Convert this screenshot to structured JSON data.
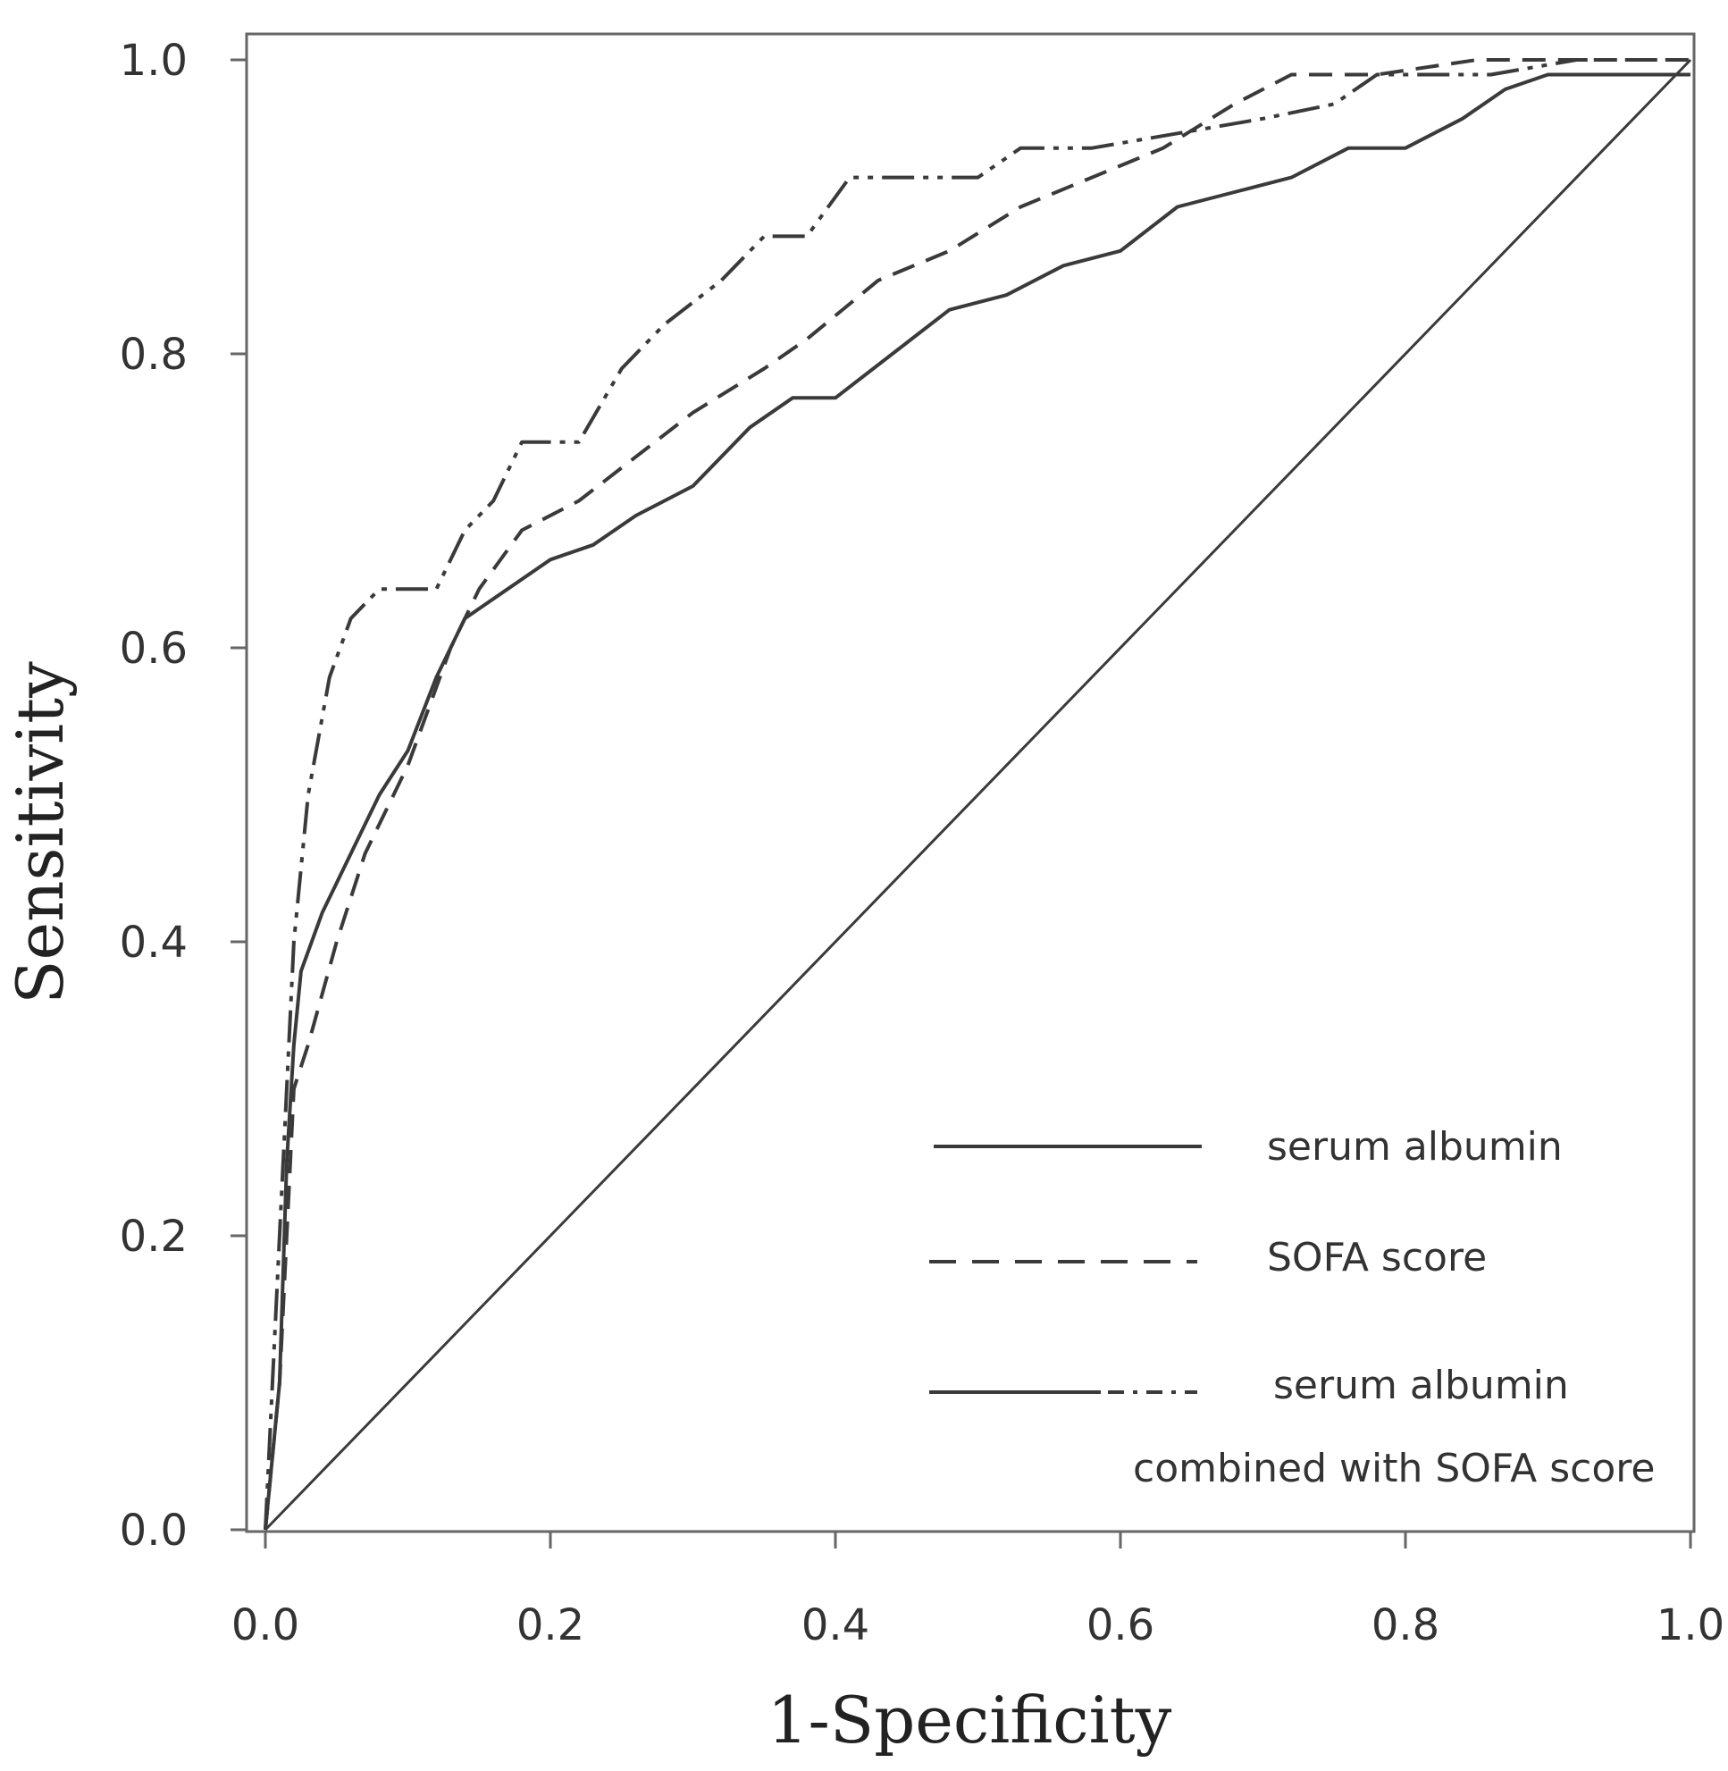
{
  "chart_data": {
    "type": "line",
    "title": "",
    "xlabel": "1-Specificity",
    "ylabel": "Sensitivity",
    "xlim": [
      0,
      1
    ],
    "ylim": [
      0,
      1
    ],
    "x_ticks": [
      "0.0",
      "0.2",
      "0.4",
      "0.6",
      "0.8",
      "1.0"
    ],
    "y_ticks": [
      "0.0",
      "0.2",
      "0.4",
      "0.6",
      "0.8",
      "1.0"
    ],
    "grid": false,
    "legend_position": "bottom-right",
    "series": [
      {
        "name": "serum albumin",
        "style": "solid",
        "x": [
          0,
          0.01,
          0.015,
          0.02,
          0.025,
          0.04,
          0.06,
          0.08,
          0.1,
          0.12,
          0.14,
          0.17,
          0.2,
          0.23,
          0.26,
          0.3,
          0.34,
          0.37,
          0.4,
          0.44,
          0.48,
          0.52,
          0.56,
          0.6,
          0.64,
          0.68,
          0.72,
          0.76,
          0.8,
          0.84,
          0.87,
          0.9,
          1.0
        ],
        "y": [
          0,
          0.1,
          0.25,
          0.33,
          0.38,
          0.42,
          0.46,
          0.5,
          0.53,
          0.58,
          0.62,
          0.64,
          0.66,
          0.67,
          0.69,
          0.71,
          0.75,
          0.77,
          0.77,
          0.8,
          0.83,
          0.84,
          0.86,
          0.87,
          0.9,
          0.91,
          0.92,
          0.94,
          0.94,
          0.96,
          0.98,
          0.99,
          0.99
        ]
      },
      {
        "name": "SOFA score",
        "style": "dashed",
        "x": [
          0,
          0.01,
          0.015,
          0.02,
          0.03,
          0.05,
          0.07,
          0.1,
          0.13,
          0.15,
          0.18,
          0.22,
          0.26,
          0.3,
          0.35,
          0.38,
          0.43,
          0.48,
          0.53,
          0.58,
          0.63,
          0.68,
          0.72,
          0.78,
          0.85,
          0.9,
          1.0
        ],
        "y": [
          0,
          0.1,
          0.2,
          0.3,
          0.33,
          0.4,
          0.46,
          0.52,
          0.6,
          0.64,
          0.68,
          0.7,
          0.73,
          0.76,
          0.79,
          0.81,
          0.85,
          0.87,
          0.9,
          0.92,
          0.94,
          0.97,
          0.99,
          0.99,
          1.0,
          1.0,
          1.0
        ]
      },
      {
        "name": "serum albumin",
        "name_line2": "combined with SOFA score",
        "style": "dashdot",
        "x": [
          0,
          0.01,
          0.015,
          0.02,
          0.03,
          0.045,
          0.06,
          0.08,
          0.12,
          0.14,
          0.16,
          0.18,
          0.22,
          0.25,
          0.28,
          0.32,
          0.35,
          0.38,
          0.41,
          0.46,
          0.5,
          0.53,
          0.58,
          0.64,
          0.7,
          0.75,
          0.78,
          0.86,
          0.92,
          1.0
        ],
        "y": [
          0,
          0.2,
          0.3,
          0.4,
          0.5,
          0.58,
          0.62,
          0.64,
          0.64,
          0.68,
          0.7,
          0.74,
          0.74,
          0.79,
          0.82,
          0.85,
          0.88,
          0.88,
          0.92,
          0.92,
          0.92,
          0.94,
          0.94,
          0.95,
          0.96,
          0.97,
          0.99,
          0.99,
          1.0,
          1.0
        ]
      },
      {
        "name": "",
        "style": "reference",
        "x": [
          0,
          1
        ],
        "y": [
          0,
          1
        ]
      }
    ],
    "colors": {
      "line": "#3a3a3a",
      "frame": "#555555"
    }
  }
}
